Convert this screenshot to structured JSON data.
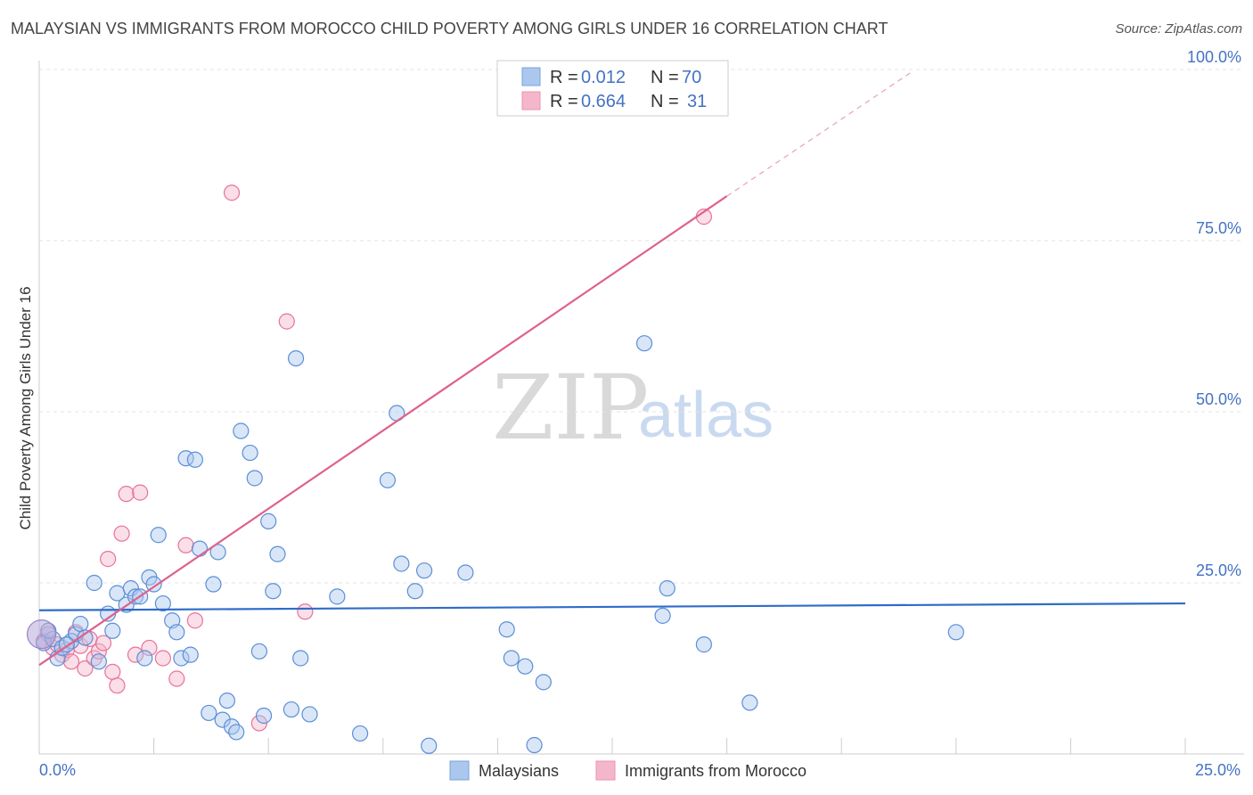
{
  "title": "MALAYSIAN VS IMMIGRANTS FROM MOROCCO CHILD POVERTY AMONG GIRLS UNDER 16 CORRELATION CHART",
  "source": "Source: ZipAtlas.com",
  "watermark": {
    "left": "ZIP",
    "right": "atlas"
  },
  "colors": {
    "blue": "#4472c4",
    "blue_fill": "#aac7ee",
    "pink": "#e8729a",
    "pink_fill": "#f4b6cb"
  },
  "chart_data": {
    "type": "scatter",
    "title": "MALAYSIAN VS IMMIGRANTS FROM MOROCCO CHILD POVERTY AMONG GIRLS UNDER 16 CORRELATION CHART",
    "xlabel": "",
    "ylabel": "Child Poverty Among Girls Under 16",
    "xlim": [
      0,
      25
    ],
    "ylim": [
      0,
      100
    ],
    "x_tick_labels": [
      "0.0%",
      "25.0%"
    ],
    "y_ticks": [
      25,
      50,
      75,
      100
    ],
    "y_tick_labels": [
      "25.0%",
      "50.0%",
      "75.0%",
      "100.0%"
    ],
    "legend": [
      {
        "r_label": "R =",
        "r_value": "0.012",
        "n_label": "N =",
        "n_value": "70"
      },
      {
        "r_label": "R =",
        "r_value": "0.664",
        "n_label": "N =",
        "n_value": "31"
      }
    ],
    "series": [
      {
        "name": "Malaysians",
        "color": "#4472c4",
        "trend": {
          "x": [
            0,
            25
          ],
          "y": [
            21.0,
            22.0
          ]
        },
        "points": [
          [
            0.1,
            16.2
          ],
          [
            0.3,
            16.8
          ],
          [
            0.4,
            14.0
          ],
          [
            0.5,
            15.5
          ],
          [
            0.7,
            16.5
          ],
          [
            0.8,
            17.5
          ],
          [
            0.9,
            19.0
          ],
          [
            1.0,
            17.0
          ],
          [
            1.2,
            25.0
          ],
          [
            1.3,
            13.5
          ],
          [
            1.5,
            20.5
          ],
          [
            1.6,
            18.0
          ],
          [
            1.7,
            23.5
          ],
          [
            1.9,
            21.8
          ],
          [
            2.0,
            24.2
          ],
          [
            2.1,
            23.0
          ],
          [
            2.2,
            23.0
          ],
          [
            2.3,
            14.0
          ],
          [
            2.4,
            25.8
          ],
          [
            2.5,
            24.8
          ],
          [
            2.6,
            32.0
          ],
          [
            2.7,
            22.0
          ],
          [
            2.9,
            19.5
          ],
          [
            3.0,
            17.8
          ],
          [
            3.1,
            14.0
          ],
          [
            3.2,
            43.2
          ],
          [
            3.3,
            14.5
          ],
          [
            3.4,
            43.0
          ],
          [
            3.5,
            30.0
          ],
          [
            3.7,
            6.0
          ],
          [
            3.8,
            24.8
          ],
          [
            3.9,
            29.5
          ],
          [
            4.0,
            5.0
          ],
          [
            4.1,
            7.8
          ],
          [
            4.2,
            4.0
          ],
          [
            4.3,
            3.2
          ],
          [
            4.4,
            47.2
          ],
          [
            4.6,
            44.0
          ],
          [
            4.7,
            40.3
          ],
          [
            4.8,
            15.0
          ],
          [
            4.9,
            5.6
          ],
          [
            5.0,
            34.0
          ],
          [
            5.1,
            23.8
          ],
          [
            5.2,
            29.2
          ],
          [
            5.5,
            6.5
          ],
          [
            5.6,
            57.8
          ],
          [
            5.7,
            14.0
          ],
          [
            5.9,
            5.8
          ],
          [
            6.5,
            23.0
          ],
          [
            7.0,
            3.0
          ],
          [
            7.6,
            40.0
          ],
          [
            7.8,
            49.8
          ],
          [
            7.9,
            27.8
          ],
          [
            8.2,
            23.8
          ],
          [
            8.4,
            26.8
          ],
          [
            8.5,
            1.2
          ],
          [
            9.3,
            26.5
          ],
          [
            10.2,
            18.2
          ],
          [
            10.3,
            14.0
          ],
          [
            10.6,
            12.8
          ],
          [
            10.8,
            1.3
          ],
          [
            11.0,
            10.5
          ],
          [
            13.2,
            60.0
          ],
          [
            13.6,
            20.2
          ],
          [
            13.7,
            24.2
          ],
          [
            14.5,
            16.0
          ],
          [
            15.5,
            7.5
          ],
          [
            20.0,
            17.8
          ],
          [
            0.2,
            18.0
          ],
          [
            0.6,
            16.0
          ]
        ]
      },
      {
        "name": "Immigrants from Morocco",
        "color": "#e8729a",
        "trend": {
          "x": [
            0,
            15
          ],
          "y": [
            13.0,
            81.5
          ]
        },
        "trend_dashed": {
          "x": [
            15,
            19
          ],
          "y": [
            81.5,
            99.5
          ]
        },
        "points": [
          [
            0.1,
            16.5
          ],
          [
            0.2,
            17.5
          ],
          [
            0.3,
            15.5
          ],
          [
            0.4,
            16.0
          ],
          [
            0.5,
            14.5
          ],
          [
            0.6,
            15.2
          ],
          [
            0.7,
            13.5
          ],
          [
            0.8,
            17.8
          ],
          [
            0.9,
            15.8
          ],
          [
            1.0,
            12.5
          ],
          [
            1.1,
            16.8
          ],
          [
            1.2,
            14.0
          ],
          [
            1.3,
            15.0
          ],
          [
            1.4,
            16.2
          ],
          [
            1.5,
            28.5
          ],
          [
            1.6,
            12.0
          ],
          [
            1.7,
            10.0
          ],
          [
            1.8,
            32.2
          ],
          [
            1.9,
            38.0
          ],
          [
            2.1,
            14.5
          ],
          [
            2.2,
            38.2
          ],
          [
            2.4,
            15.5
          ],
          [
            2.7,
            14.0
          ],
          [
            3.0,
            11.0
          ],
          [
            3.2,
            30.5
          ],
          [
            3.4,
            19.5
          ],
          [
            4.2,
            82.0
          ],
          [
            4.8,
            4.5
          ],
          [
            5.4,
            63.2
          ],
          [
            5.8,
            20.8
          ],
          [
            14.5,
            78.5
          ]
        ]
      }
    ]
  },
  "bottom_legend": [
    "Malaysians",
    "Immigrants from Morocco"
  ]
}
